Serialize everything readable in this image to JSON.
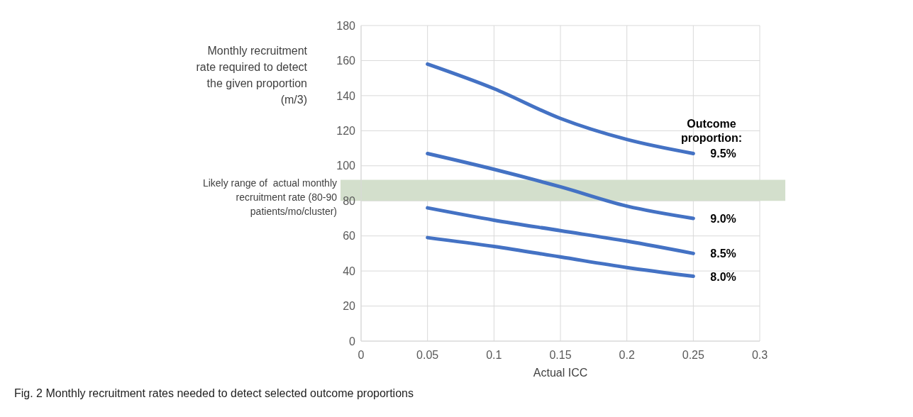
{
  "chart_data": {
    "type": "line",
    "ylabel": "Monthly recruitment rate required to detect the given proportion (m/3)",
    "xlabel": "Actual ICC",
    "legend_title": "Outcome proportion:",
    "x": [
      0.05,
      0.1,
      0.15,
      0.2,
      0.25
    ],
    "series": [
      {
        "name": "9.5%",
        "color": "#4472c4",
        "values": [
          158,
          144,
          127,
          115,
          107
        ]
      },
      {
        "name": "9.0%",
        "color": "#4472c4",
        "values": [
          107,
          98,
          88,
          77,
          70
        ]
      },
      {
        "name": "8.5%",
        "color": "#4472c4",
        "values": [
          76,
          69,
          63,
          57,
          50
        ]
      },
      {
        "name": "8.0%",
        "color": "#4472c4",
        "values": [
          59,
          54,
          48,
          42,
          37
        ]
      }
    ],
    "xlim": [
      0,
      0.3
    ],
    "xticks": [
      0,
      0.05,
      0.1,
      0.15,
      0.2,
      0.25,
      0.3
    ],
    "ylim": [
      0,
      180
    ],
    "yticks": [
      0,
      20,
      40,
      60,
      80,
      100,
      120,
      140,
      160,
      180
    ],
    "bands": [
      {
        "axis": "y",
        "from": 80,
        "to": 92,
        "label": "Likely range of  actual monthly recruitment rate (80-90 patients/mo/cluster)",
        "color": "#d3dfcc"
      }
    ],
    "grid": true,
    "marker": "none",
    "line_style": "solid",
    "annotations": [
      "Fig. 2  Monthly recruitment rates needed to detect selected outcome proportions"
    ]
  }
}
